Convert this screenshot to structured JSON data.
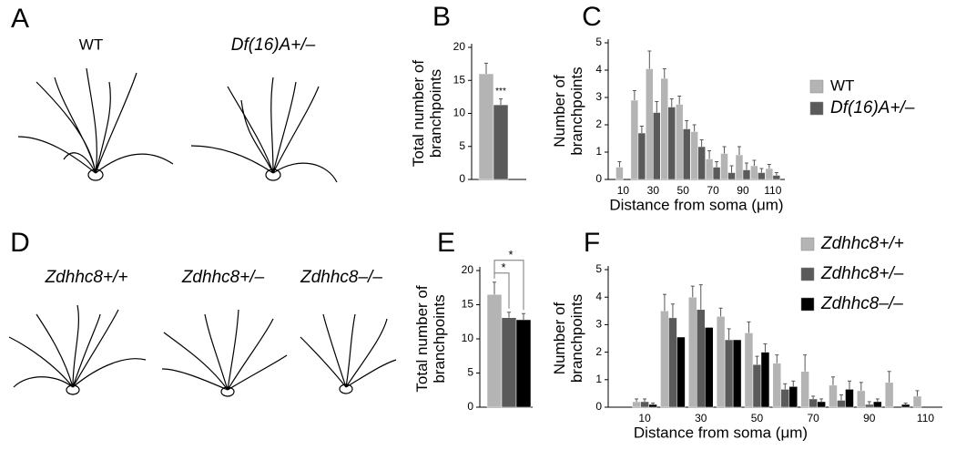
{
  "drawings": [
    {
      "panel": "A",
      "labels": [
        "WT",
        "Df(16)A+/–"
      ]
    },
    {
      "panel": "D",
      "labels": [
        "Zdhhc8+/+",
        "Zdhhc8+/–",
        "Zdhhc8–/–"
      ]
    }
  ],
  "chart_data": [
    {
      "type": "bar",
      "panel": "B",
      "ylabel": "Total number of branchpoints",
      "values": [
        16,
        11.3
      ],
      "errors": [
        1.6,
        0.9
      ],
      "colors": [
        "#b4b4b4",
        "#5a5a5a"
      ],
      "ylim": [
        0,
        20
      ],
      "yticks": [
        0,
        5,
        10,
        15,
        20
      ],
      "annotations": [
        "***"
      ]
    },
    {
      "type": "grouped-bar",
      "panel": "C",
      "xlabel": "Distance from soma (μm)",
      "ylabel": "Number of branchpoints",
      "x": [
        10,
        20,
        30,
        40,
        50,
        60,
        70,
        80,
        90,
        100,
        110
      ],
      "xlim": [
        0,
        118
      ],
      "xticks": [
        10,
        30,
        50,
        70,
        90,
        110
      ],
      "ylim": [
        0,
        5
      ],
      "yticks": [
        0,
        1,
        2,
        3,
        4,
        5
      ],
      "series": [
        {
          "name": "WT",
          "color": "#b4b4b4",
          "values": [
            0.45,
            2.9,
            4.05,
            3.7,
            2.75,
            1.75,
            0.75,
            0.95,
            0.9,
            0.5,
            0.4
          ],
          "errors": [
            0.2,
            0.35,
            0.65,
            0.35,
            0.3,
            0.25,
            0.3,
            0.25,
            0.3,
            0.2,
            0.15
          ]
        },
        {
          "name": "Df(16)A+/–",
          "color": "#5a5a5a",
          "values": [
            null,
            1.7,
            2.45,
            2.65,
            1.85,
            1.2,
            0.45,
            0.25,
            0.35,
            0.25,
            0.15
          ],
          "errors": [
            null,
            0.25,
            0.4,
            0.3,
            0.3,
            0.25,
            0.2,
            0.25,
            0.25,
            0.15,
            0.1
          ]
        }
      ]
    },
    {
      "type": "bar",
      "panel": "E",
      "ylabel": "Total number of branchpoints",
      "values": [
        16.5,
        13.1,
        12.8
      ],
      "errors": [
        1.8,
        0.8,
        0.9
      ],
      "colors": [
        "#b4b4b4",
        "#5a5a5a",
        "#000000"
      ],
      "ylim": [
        0,
        20
      ],
      "yticks": [
        0,
        5,
        10,
        15,
        20
      ],
      "annotations": [
        "*",
        "*"
      ]
    },
    {
      "type": "grouped-bar",
      "panel": "F",
      "xlabel": "Distance from soma (μm)",
      "ylabel": "Number of branchpoints",
      "x": [
        10,
        20,
        30,
        40,
        50,
        60,
        70,
        80,
        90,
        100,
        110
      ],
      "xlim": [
        -3,
        116
      ],
      "xticks": [
        10,
        30,
        50,
        70,
        90,
        110
      ],
      "ylim": [
        0,
        5
      ],
      "yticks": [
        0,
        1,
        2,
        3,
        4,
        5
      ],
      "series": [
        {
          "name": "Zdhhc8+/+",
          "color": "#b4b4b4",
          "values": [
            0.2,
            3.5,
            4.0,
            3.3,
            2.7,
            1.6,
            1.3,
            0.8,
            0.6,
            0.9,
            0.4
          ],
          "errors": [
            0.1,
            0.6,
            0.4,
            0.3,
            0.4,
            0.3,
            0.6,
            0.3,
            0.3,
            0.4,
            0.2
          ]
        },
        {
          "name": "Zdhhc8+/–",
          "color": "#5a5a5a",
          "values": [
            0.2,
            3.25,
            3.55,
            2.45,
            1.55,
            0.65,
            0.3,
            0.25,
            0.1,
            null,
            null
          ],
          "errors": [
            0.1,
            0.5,
            0.9,
            0.4,
            0.3,
            0.2,
            0.1,
            0.2,
            0.1,
            null,
            null
          ]
        },
        {
          "name": "Zdhhc8–/–",
          "color": "#000000",
          "values": [
            0.1,
            2.55,
            2.9,
            2.45,
            2.0,
            0.75,
            0.2,
            0.65,
            0.2,
            0.1,
            null
          ],
          "errors": [
            0.05,
            null,
            null,
            null,
            0.3,
            0.2,
            0.1,
            0.3,
            0.1,
            0.05,
            null
          ]
        }
      ]
    }
  ]
}
